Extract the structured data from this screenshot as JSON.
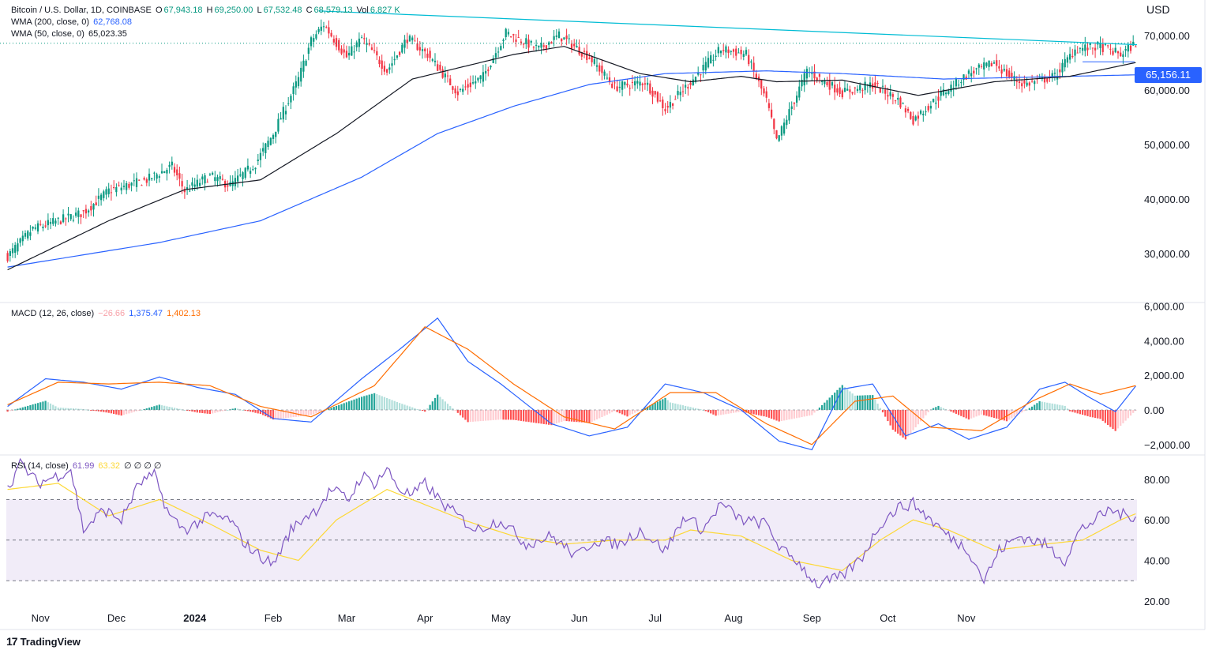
{
  "header": {
    "symbol": "Bitcoin / U.S. Dollar, 1D, COINBASE",
    "o_label": "O",
    "o_value": "67,943.18",
    "h_label": "H",
    "h_value": "69,250.00",
    "l_label": "L",
    "l_value": "67,532.48",
    "c_label": "C",
    "c_value": "68,579.13",
    "vol_label": "Vol",
    "vol_value": "6.827 K",
    "wma200_label": "WMA (200, close, 0)",
    "wma200_value": "62,768.08",
    "wma50_label": "WMA (50, close, 0)",
    "wma50_value": "65,023.35"
  },
  "currency": "USD",
  "price_tag": "65,156.11",
  "macd_legend": {
    "label": "MACD (12, 26, close)",
    "hist": "−26.66",
    "macd": "1,375.47",
    "signal": "1,402.13"
  },
  "rsi_legend": {
    "label": "RSI (14, close)",
    "rsi": "61.99",
    "ma": "63.32",
    "extra": "∅ ∅ ∅ ∅"
  },
  "branding": {
    "name": "TradingView",
    "mark": "17"
  },
  "colors": {
    "up": "#089981",
    "down": "#f23645",
    "wma50": "#131722",
    "wma200": "#2962ff",
    "trendline": "#00bcd4",
    "macd": "#2962ff",
    "signal": "#ff6d00",
    "rsi": "#7e57c2",
    "rsi_ma": "#fdd835",
    "rsi_band": "#ede7f6"
  },
  "chart_data": [
    {
      "type": "candlestick",
      "title": "Bitcoin / U.S. Dollar, 1D, COINBASE",
      "x_ticks": [
        "Nov",
        "Dec",
        "2024",
        "Feb",
        "Mar",
        "Apr",
        "May",
        "Jun",
        "Jul",
        "Aug",
        "Sep",
        "Oct",
        "Nov"
      ],
      "y_ticks": [
        "30,000.00",
        "40,000.00",
        "50,000.00",
        "60,000.00",
        "70,000.00"
      ],
      "ylim": [
        21000,
        76500
      ],
      "key_points": [
        [
          0,
          29500
        ],
        [
          10,
          34500
        ],
        [
          30,
          37500
        ],
        [
          40,
          41500
        ],
        [
          55,
          43500
        ],
        [
          65,
          46000
        ],
        [
          70,
          41500
        ],
        [
          80,
          44200
        ],
        [
          88,
          42500
        ],
        [
          98,
          46500
        ],
        [
          105,
          52000
        ],
        [
          115,
          62000
        ],
        [
          120,
          69000
        ],
        [
          125,
          72000
        ],
        [
          134,
          66000
        ],
        [
          140,
          69500
        ],
        [
          150,
          63500
        ],
        [
          158,
          69500
        ],
        [
          166,
          66500
        ],
        [
          178,
          59500
        ],
        [
          188,
          62500
        ],
        [
          197,
          70500
        ],
        [
          210,
          67500
        ],
        [
          218,
          70000
        ],
        [
          230,
          66000
        ],
        [
          240,
          60500
        ],
        [
          252,
          61500
        ],
        [
          260,
          56500
        ],
        [
          270,
          61500
        ],
        [
          282,
          67500
        ],
        [
          292,
          66500
        ],
        [
          300,
          58000
        ],
        [
          304,
          50500
        ],
        [
          316,
          63500
        ],
        [
          330,
          59500
        ],
        [
          342,
          61000
        ],
        [
          352,
          58200
        ],
        [
          358,
          54500
        ],
        [
          370,
          59500
        ],
        [
          380,
          63000
        ],
        [
          390,
          65000
        ],
        [
          396,
          62500
        ],
        [
          402,
          61000
        ],
        [
          414,
          62500
        ],
        [
          422,
          67500
        ],
        [
          432,
          68000
        ],
        [
          440,
          66500
        ],
        [
          446,
          68579
        ]
      ],
      "wma50_points": [
        [
          0,
          27000
        ],
        [
          40,
          36000
        ],
        [
          70,
          41700
        ],
        [
          100,
          43500
        ],
        [
          130,
          52000
        ],
        [
          160,
          62000
        ],
        [
          200,
          66500
        ],
        [
          220,
          68000
        ],
        [
          250,
          63000
        ],
        [
          270,
          61500
        ],
        [
          290,
          62500
        ],
        [
          304,
          61500
        ],
        [
          330,
          61800
        ],
        [
          360,
          59000
        ],
        [
          390,
          61500
        ],
        [
          420,
          62500
        ],
        [
          446,
          65023
        ]
      ],
      "wma200_points": [
        [
          0,
          27500
        ],
        [
          60,
          32000
        ],
        [
          100,
          36000
        ],
        [
          140,
          44000
        ],
        [
          170,
          52000
        ],
        [
          200,
          57000
        ],
        [
          230,
          61000
        ],
        [
          260,
          63000
        ],
        [
          300,
          63500
        ],
        [
          330,
          63000
        ],
        [
          370,
          62000
        ],
        [
          410,
          62400
        ],
        [
          446,
          62768
        ]
      ]
    },
    {
      "type": "line",
      "title": "MACD (12, 26, close)",
      "y_ticks": [
        "−2,000.00",
        "0.00",
        "2,000.00",
        "4,000.00",
        "6,000.00"
      ],
      "ylim": [
        -2600,
        6200
      ],
      "macd_points": [
        [
          0,
          200
        ],
        [
          15,
          1800
        ],
        [
          30,
          1600
        ],
        [
          45,
          1200
        ],
        [
          60,
          1900
        ],
        [
          75,
          1300
        ],
        [
          90,
          900
        ],
        [
          105,
          -500
        ],
        [
          120,
          -700
        ],
        [
          140,
          1800
        ],
        [
          155,
          3500
        ],
        [
          170,
          5300
        ],
        [
          182,
          2800
        ],
        [
          195,
          1500
        ],
        [
          215,
          -800
        ],
        [
          230,
          -1500
        ],
        [
          245,
          -1000
        ],
        [
          260,
          1500
        ],
        [
          275,
          1000
        ],
        [
          290,
          0
        ],
        [
          305,
          -1800
        ],
        [
          318,
          -2300
        ],
        [
          330,
          1200
        ],
        [
          342,
          1500
        ],
        [
          355,
          -1500
        ],
        [
          368,
          -800
        ],
        [
          380,
          -1700
        ],
        [
          395,
          -1000
        ],
        [
          408,
          1200
        ],
        [
          418,
          1600
        ],
        [
          428,
          700
        ],
        [
          438,
          -100
        ],
        [
          446,
          1375
        ]
      ],
      "signal_points": [
        [
          0,
          300
        ],
        [
          20,
          1600
        ],
        [
          40,
          1500
        ],
        [
          60,
          1600
        ],
        [
          80,
          1400
        ],
        [
          100,
          200
        ],
        [
          120,
          -400
        ],
        [
          145,
          1400
        ],
        [
          165,
          4800
        ],
        [
          182,
          3500
        ],
        [
          200,
          1500
        ],
        [
          220,
          -400
        ],
        [
          240,
          -1100
        ],
        [
          262,
          1000
        ],
        [
          280,
          1000
        ],
        [
          300,
          -800
        ],
        [
          318,
          -2000
        ],
        [
          335,
          500
        ],
        [
          350,
          800
        ],
        [
          365,
          -1000
        ],
        [
          385,
          -1200
        ],
        [
          405,
          500
        ],
        [
          420,
          1500
        ],
        [
          432,
          900
        ],
        [
          446,
          1402
        ]
      ]
    },
    {
      "type": "line",
      "title": "RSI (14, close)",
      "y_ticks": [
        "20.00",
        "40.00",
        "60.00",
        "80.00"
      ],
      "ylim": [
        18,
        92
      ],
      "bands": [
        30,
        50,
        70
      ],
      "rsi_points": [
        [
          0,
          75
        ],
        [
          5,
          88
        ],
        [
          12,
          78
        ],
        [
          20,
          82
        ],
        [
          25,
          85
        ],
        [
          30,
          55
        ],
        [
          38,
          65
        ],
        [
          45,
          60
        ],
        [
          52,
          78
        ],
        [
          58,
          82
        ],
        [
          64,
          62
        ],
        [
          70,
          55
        ],
        [
          80,
          62
        ],
        [
          88,
          60
        ],
        [
          94,
          48
        ],
        [
          100,
          42
        ],
        [
          105,
          38
        ],
        [
          112,
          55
        ],
        [
          118,
          62
        ],
        [
          122,
          65
        ],
        [
          128,
          75
        ],
        [
          135,
          70
        ],
        [
          140,
          82
        ],
        [
          145,
          78
        ],
        [
          150,
          85
        ],
        [
          155,
          75
        ],
        [
          160,
          72
        ],
        [
          165,
          78
        ],
        [
          172,
          68
        ],
        [
          178,
          62
        ],
        [
          185,
          55
        ],
        [
          195,
          60
        ],
        [
          205,
          48
        ],
        [
          215,
          52
        ],
        [
          225,
          42
        ],
        [
          232,
          50
        ],
        [
          242,
          48
        ],
        [
          250,
          55
        ],
        [
          260,
          45
        ],
        [
          268,
          62
        ],
        [
          275,
          55
        ],
        [
          282,
          68
        ],
        [
          290,
          60
        ],
        [
          300,
          58
        ],
        [
          306,
          45
        ],
        [
          312,
          40
        ],
        [
          320,
          28
        ],
        [
          330,
          32
        ],
        [
          338,
          42
        ],
        [
          345,
          58
        ],
        [
          352,
          66
        ],
        [
          358,
          68
        ],
        [
          365,
          60
        ],
        [
          372,
          52
        ],
        [
          380,
          45
        ],
        [
          386,
          30
        ],
        [
          392,
          45
        ],
        [
          400,
          52
        ],
        [
          410,
          48
        ],
        [
          418,
          40
        ],
        [
          424,
          55
        ],
        [
          430,
          60
        ],
        [
          436,
          65
        ],
        [
          442,
          62
        ],
        [
          446,
          62
        ]
      ],
      "rsi_ma_points": [
        [
          0,
          75
        ],
        [
          20,
          78
        ],
        [
          40,
          62
        ],
        [
          60,
          70
        ],
        [
          80,
          58
        ],
        [
          100,
          45
        ],
        [
          115,
          40
        ],
        [
          130,
          60
        ],
        [
          150,
          75
        ],
        [
          160,
          70
        ],
        [
          180,
          60
        ],
        [
          200,
          52
        ],
        [
          220,
          48
        ],
        [
          240,
          50
        ],
        [
          260,
          50
        ],
        [
          270,
          55
        ],
        [
          290,
          52
        ],
        [
          310,
          40
        ],
        [
          330,
          35
        ],
        [
          345,
          50
        ],
        [
          358,
          60
        ],
        [
          372,
          55
        ],
        [
          390,
          45
        ],
        [
          410,
          48
        ],
        [
          425,
          50
        ],
        [
          440,
          60
        ],
        [
          446,
          63
        ]
      ]
    }
  ]
}
